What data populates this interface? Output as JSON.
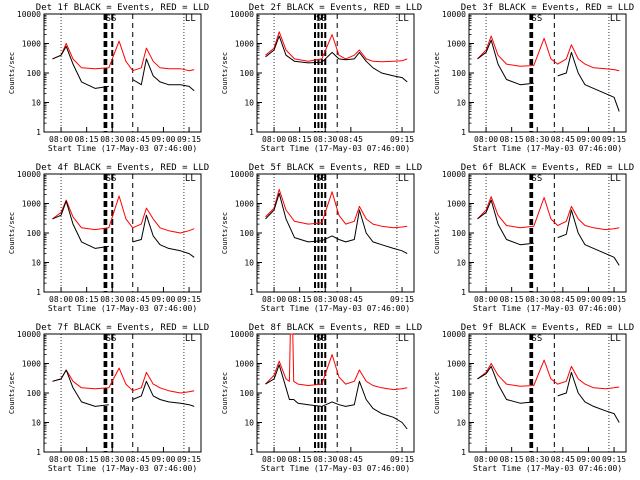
{
  "ylabel": "Counts/sec",
  "xlabel": "Start Time (17-May-03 07:46:00)",
  "marker_labels": [
    "SS",
    "LL"
  ],
  "series": [
    {
      "name": "Events",
      "color": "#000000"
    },
    {
      "name": "LLD",
      "color": "#ff0000"
    }
  ],
  "chart_data": [
    {
      "type": "line",
      "title": "Det 1f BLACK = Events, RED = LLD",
      "x_ticks": [
        "08:00",
        "08:15",
        "08:30",
        "08:45",
        "09:00",
        "09:15"
      ],
      "y_ticks": [
        "1",
        "10",
        "100",
        "1000",
        "10000"
      ],
      "y_scale": "log",
      "ylim": [
        1,
        10000
      ],
      "x_minutes": [
        -5,
        0,
        3,
        7,
        12,
        20,
        28,
        34,
        38,
        42,
        47,
        50,
        54,
        58,
        63,
        70,
        75,
        78
      ],
      "series": [
        {
          "name": "LLD",
          "values": [
            300,
            400,
            1000,
            300,
            150,
            140,
            150,
            1200,
            250,
            120,
            150,
            700,
            250,
            150,
            140,
            140,
            120,
            130
          ]
        },
        {
          "name": "Events",
          "values": [
            300,
            400,
            800,
            200,
            50,
            30,
            35,
            null,
            null,
            60,
            40,
            300,
            80,
            50,
            40,
            40,
            35,
            25
          ]
        }
      ],
      "dashed_minutes": [
        25.5,
        26.5,
        30,
        42
      ],
      "dotted_minutes": [
        0,
        72
      ]
    },
    {
      "type": "line",
      "title": "Det 2f BLACK = Events, RED = LLD",
      "x_ticks": [
        "08:00",
        "08:15",
        "08:30",
        "08:45",
        "09:15"
      ],
      "y_ticks": [
        "1",
        "10",
        "100",
        "1000",
        "10000"
      ],
      "y_scale": "log",
      "ylim": [
        1,
        10000
      ],
      "x_minutes": [
        -5,
        0,
        3,
        7,
        12,
        20,
        28,
        34,
        38,
        42,
        47,
        50,
        54,
        58,
        63,
        70,
        75,
        78
      ],
      "series": [
        {
          "name": "LLD",
          "values": [
            400,
            700,
            2500,
            600,
            300,
            250,
            300,
            2000,
            400,
            300,
            400,
            600,
            300,
            250,
            240,
            250,
            260,
            300
          ]
        },
        {
          "name": "Events",
          "values": [
            350,
            600,
            1800,
            400,
            250,
            220,
            230,
            500,
            300,
            280,
            300,
            500,
            250,
            150,
            100,
            80,
            70,
            50
          ]
        }
      ],
      "dashed_minutes": [
        24,
        26,
        28,
        30,
        37
      ],
      "dotted_minutes": [
        0,
        72
      ]
    },
    {
      "type": "line",
      "title": "Det 3f BLACK = Events, RED = LLD",
      "x_ticks": [
        "08:00",
        "08:15",
        "08:30",
        "08:45",
        "09:00",
        "09:15"
      ],
      "y_ticks": [
        "1",
        "10",
        "100",
        "1000",
        "10000"
      ],
      "y_scale": "log",
      "ylim": [
        1,
        10000
      ],
      "x_minutes": [
        -5,
        0,
        3,
        7,
        12,
        20,
        28,
        34,
        38,
        42,
        47,
        50,
        54,
        58,
        63,
        70,
        75,
        78
      ],
      "series": [
        {
          "name": "LLD",
          "values": [
            300,
            600,
            1800,
            400,
            200,
            170,
            180,
            1500,
            300,
            200,
            300,
            900,
            300,
            200,
            150,
            140,
            130,
            120
          ]
        },
        {
          "name": "Events",
          "values": [
            300,
            500,
            1300,
            200,
            60,
            40,
            45,
            null,
            null,
            80,
            100,
            500,
            100,
            40,
            30,
            20,
            15,
            5
          ]
        }
      ],
      "dashed_minutes": [
        26,
        27,
        40
      ],
      "dotted_minutes": [
        0,
        72
      ]
    },
    {
      "type": "line",
      "title": "Det 4f BLACK = Events, RED = LLD",
      "x_ticks": [
        "08:00",
        "08:15",
        "08:30",
        "08:45",
        "09:00",
        "09:15"
      ],
      "y_ticks": [
        "1",
        "10",
        "100",
        "1000",
        "10000"
      ],
      "y_scale": "log",
      "ylim": [
        1,
        10000
      ],
      "x_minutes": [
        -5,
        0,
        3,
        7,
        12,
        20,
        28,
        34,
        38,
        42,
        47,
        50,
        54,
        58,
        63,
        70,
        75,
        78
      ],
      "series": [
        {
          "name": "LLD",
          "values": [
            300,
            500,
            1300,
            350,
            150,
            130,
            150,
            1800,
            300,
            150,
            200,
            700,
            300,
            150,
            120,
            100,
            120,
            140
          ]
        },
        {
          "name": "Events",
          "values": [
            300,
            400,
            1200,
            200,
            50,
            30,
            35,
            null,
            null,
            50,
            60,
            400,
            80,
            40,
            30,
            25,
            20,
            15
          ]
        }
      ],
      "dashed_minutes": [
        25.5,
        26.5,
        30,
        42
      ],
      "dotted_minutes": [
        0,
        72
      ]
    },
    {
      "type": "line",
      "title": "Det 5f BLACK = Events, RED = LLD",
      "x_ticks": [
        "08:00",
        "08:15",
        "08:30",
        "08:45",
        "09:15"
      ],
      "y_ticks": [
        "1",
        "10",
        "100",
        "1000",
        "10000"
      ],
      "y_scale": "log",
      "ylim": [
        1,
        10000
      ],
      "x_minutes": [
        -5,
        0,
        3,
        7,
        12,
        20,
        28,
        34,
        38,
        42,
        47,
        50,
        54,
        58,
        63,
        70,
        75,
        78
      ],
      "series": [
        {
          "name": "LLD",
          "values": [
            350,
            700,
            3000,
            600,
            250,
            200,
            220,
            2500,
            400,
            200,
            250,
            800,
            300,
            200,
            170,
            150,
            160,
            170
          ]
        },
        {
          "name": "Events",
          "values": [
            300,
            600,
            2200,
            300,
            70,
            50,
            55,
            80,
            60,
            50,
            60,
            600,
            100,
            50,
            40,
            30,
            25,
            20
          ]
        }
      ],
      "dashed_minutes": [
        24,
        26,
        28,
        30,
        37
      ],
      "dotted_minutes": [
        0,
        72
      ]
    },
    {
      "type": "line",
      "title": "Det 6f BLACK = Events, RED = LLD",
      "x_ticks": [
        "08:00",
        "08:15",
        "08:30",
        "08:45",
        "09:00",
        "09:15"
      ],
      "y_ticks": [
        "1",
        "10",
        "100",
        "1000",
        "10000"
      ],
      "y_scale": "log",
      "ylim": [
        1,
        10000
      ],
      "x_minutes": [
        -5,
        0,
        3,
        7,
        12,
        20,
        28,
        34,
        38,
        42,
        47,
        50,
        54,
        58,
        63,
        70,
        75,
        78
      ],
      "series": [
        {
          "name": "LLD",
          "values": [
            300,
            600,
            1700,
            400,
            180,
            150,
            170,
            1600,
            300,
            180,
            250,
            800,
            300,
            180,
            150,
            130,
            140,
            150
          ]
        },
        {
          "name": "Events",
          "values": [
            300,
            500,
            1300,
            200,
            60,
            40,
            45,
            null,
            null,
            70,
            90,
            600,
            100,
            40,
            30,
            20,
            15,
            8
          ]
        }
      ],
      "dashed_minutes": [
        26,
        27,
        40
      ],
      "dotted_minutes": [
        0,
        72
      ]
    },
    {
      "type": "line",
      "title": "Det 7f BLACK = Events, RED = LLD",
      "x_ticks": [
        "08:00",
        "08:15",
        "08:30",
        "08:45",
        "09:00",
        "09:15"
      ],
      "y_ticks": [
        "1",
        "10",
        "100",
        "1000",
        "10000"
      ],
      "y_scale": "log",
      "ylim": [
        1,
        10000
      ],
      "x_minutes": [
        -5,
        0,
        3,
        7,
        12,
        20,
        28,
        34,
        38,
        42,
        47,
        50,
        54,
        58,
        63,
        70,
        75,
        78
      ],
      "series": [
        {
          "name": "LLD",
          "values": [
            250,
            300,
            600,
            250,
            150,
            140,
            150,
            700,
            200,
            120,
            150,
            500,
            200,
            150,
            120,
            100,
            110,
            120
          ]
        },
        {
          "name": "Events",
          "values": [
            250,
            300,
            600,
            150,
            50,
            35,
            40,
            null,
            null,
            60,
            80,
            250,
            80,
            60,
            50,
            45,
            40,
            35
          ]
        }
      ],
      "dashed_minutes": [
        25.5,
        26.5,
        30,
        42
      ],
      "dotted_minutes": [
        0,
        72
      ]
    },
    {
      "type": "line",
      "title": "Det 8f BLACK = Events, RED = LLD",
      "x_ticks": [
        "08:00",
        "08:15",
        "08:30",
        "08:45",
        "09:15"
      ],
      "y_ticks": [
        "1",
        "10",
        "100",
        "1000",
        "10000"
      ],
      "y_scale": "log",
      "ylim": [
        1,
        10000
      ],
      "x_minutes": [
        -5,
        0,
        3,
        7,
        9,
        9.5,
        11,
        11.5,
        14,
        20,
        28,
        34,
        38,
        42,
        47,
        50,
        54,
        58,
        63,
        70,
        75,
        78
      ],
      "series": [
        {
          "name": "LLD",
          "values": [
            200,
            400,
            1200,
            300,
            250,
            10000,
            10000,
            250,
            200,
            180,
            200,
            2000,
            350,
            200,
            250,
            600,
            250,
            180,
            150,
            130,
            140,
            150
          ]
        },
        {
          "name": "Events",
          "values": [
            200,
            300,
            900,
            150,
            60,
            60,
            60,
            60,
            45,
            40,
            35,
            50,
            40,
            35,
            40,
            250,
            60,
            30,
            20,
            15,
            10,
            6
          ]
        }
      ],
      "dashed_minutes": [
        24,
        26,
        28,
        30,
        37
      ],
      "dotted_minutes": [
        0,
        72
      ]
    },
    {
      "type": "line",
      "title": "Det 9f BLACK = Events, RED = LLD",
      "x_ticks": [
        "08:00",
        "08:15",
        "08:30",
        "08:45",
        "09:00",
        "09:15"
      ],
      "y_ticks": [
        "1",
        "10",
        "100",
        "1000",
        "10000"
      ],
      "y_scale": "log",
      "ylim": [
        1,
        10000
      ],
      "x_minutes": [
        -5,
        0,
        3,
        7,
        12,
        20,
        28,
        34,
        38,
        42,
        47,
        50,
        54,
        58,
        63,
        70,
        75,
        78
      ],
      "series": [
        {
          "name": "LLD",
          "values": [
            300,
            500,
            1000,
            400,
            200,
            170,
            180,
            1300,
            300,
            200,
            250,
            800,
            300,
            200,
            150,
            140,
            150,
            160
          ]
        },
        {
          "name": "Events",
          "values": [
            300,
            450,
            800,
            200,
            60,
            45,
            50,
            null,
            null,
            80,
            100,
            500,
            100,
            50,
            35,
            25,
            20,
            10
          ]
        }
      ],
      "dashed_minutes": [
        26,
        27,
        40
      ],
      "dotted_minutes": [
        0,
        72
      ]
    }
  ]
}
